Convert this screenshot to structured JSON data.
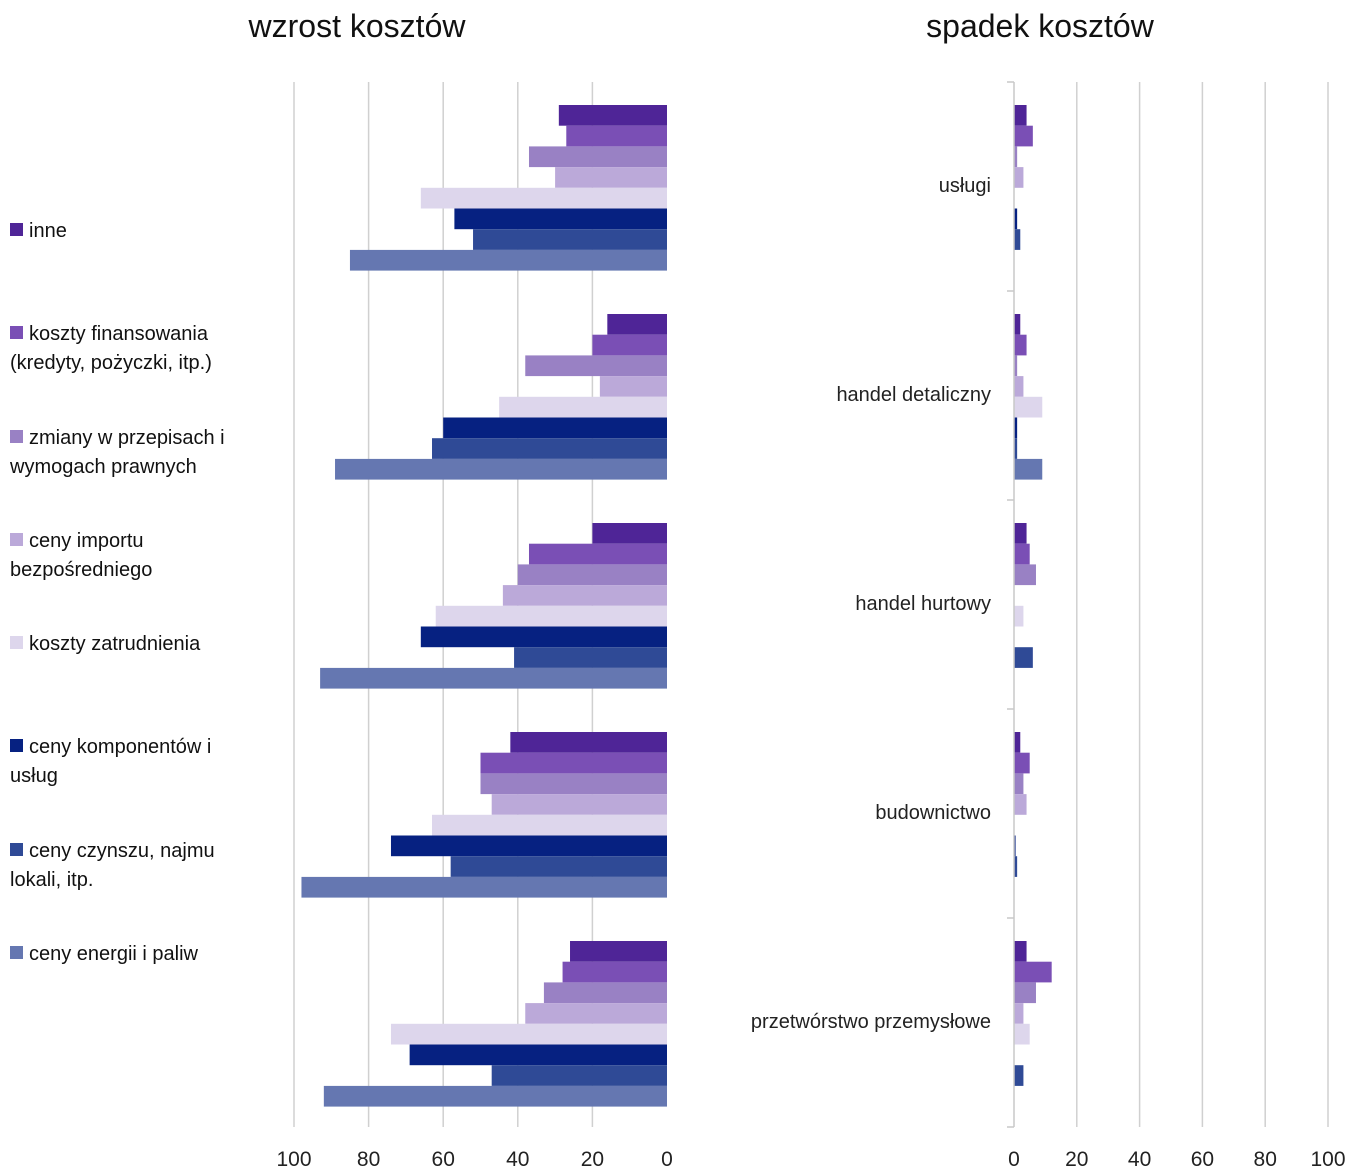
{
  "chart_data": [
    {
      "type": "bar",
      "orientation": "horizontal",
      "title": "wzrost kosztów",
      "x_axis_reversed": true,
      "xlim": [
        0,
        100
      ],
      "xticks": [
        100,
        80,
        60,
        40,
        20,
        0
      ],
      "grid": true,
      "legend_position": "left",
      "categories": [
        "usługi",
        "handel detaliczny",
        "handel hurtowy",
        "budownictwo",
        "przetwórstwo przemysłowe"
      ],
      "series": [
        {
          "name": "inne",
          "color": "#4F2597",
          "values": [
            29,
            16,
            20,
            42,
            26
          ]
        },
        {
          "name": "koszty finansowania (kredyty, pożyczki, itp.)",
          "color": "#7A4FB5",
          "values": [
            27,
            20,
            37,
            50,
            28
          ]
        },
        {
          "name": "zmiany w przepisach i wymogach prawnych",
          "color": "#9981C4",
          "values": [
            37,
            38,
            40,
            50,
            33
          ]
        },
        {
          "name": "ceny importu bezpośredniego",
          "color": "#BBA9D9",
          "values": [
            30,
            18,
            44,
            47,
            38
          ]
        },
        {
          "name": "koszty zatrudnienia",
          "color": "#DDD6EC",
          "values": [
            66,
            45,
            62,
            63,
            74
          ]
        },
        {
          "name": "ceny komponentów i usług",
          "color": "#062181",
          "values": [
            57,
            60,
            66,
            74,
            69
          ]
        },
        {
          "name": "ceny czynszu, najmu lokali, itp.",
          "color": "#2F4A96",
          "values": [
            52,
            63,
            41,
            58,
            47
          ]
        },
        {
          "name": "ceny energii i paliw",
          "color": "#6577B1",
          "values": [
            85,
            89,
            93,
            98,
            92
          ]
        }
      ]
    },
    {
      "type": "bar",
      "orientation": "horizontal",
      "title": "spadek kosztów",
      "xlim": [
        0,
        100
      ],
      "xticks": [
        0,
        20,
        40,
        60,
        80,
        100
      ],
      "grid": true,
      "categories": [
        "usługi",
        "handel detaliczny",
        "handel hurtowy",
        "budownictwo",
        "przetwórstwo przemysłowe"
      ],
      "series": [
        {
          "name": "inne",
          "color": "#4F2597",
          "values": [
            4,
            2,
            4,
            2,
            4
          ]
        },
        {
          "name": "koszty finansowania (kredyty, pożyczki, itp.)",
          "color": "#7A4FB5",
          "values": [
            6,
            4,
            5,
            5,
            12
          ]
        },
        {
          "name": "zmiany w przepisach i wymogach prawnych",
          "color": "#9981C4",
          "values": [
            1,
            1,
            7,
            3,
            7
          ]
        },
        {
          "name": "ceny importu bezpośredniego",
          "color": "#BBA9D9",
          "values": [
            3,
            3,
            0,
            4,
            3
          ]
        },
        {
          "name": "koszty zatrudnienia",
          "color": "#DDD6EC",
          "values": [
            0,
            9,
            3,
            0,
            5
          ]
        },
        {
          "name": "ceny komponentów i usług",
          "color": "#062181",
          "values": [
            1,
            1,
            0,
            0.5,
            0
          ]
        },
        {
          "name": "ceny czynszu, najmu lokali, itp.",
          "color": "#2F4A96",
          "values": [
            2,
            1,
            6,
            1,
            3
          ]
        },
        {
          "name": "ceny energii i paliw",
          "color": "#6577B1",
          "values": [
            0,
            9,
            0,
            0,
            0
          ]
        }
      ]
    }
  ],
  "legend": {
    "items": [
      {
        "label": "inne",
        "color": "#4F2597"
      },
      {
        "label": "koszty finansowania (kredyty, pożyczki, itp.)",
        "color": "#7A4FB5"
      },
      {
        "label": "zmiany w przepisach i wymogach prawnych",
        "color": "#9981C4"
      },
      {
        "label": "ceny importu bezpośredniego",
        "color": "#BBA9D9"
      },
      {
        "label": "koszty zatrudnienia",
        "color": "#DDD6EC"
      },
      {
        "label": "ceny komponentów i usług",
        "color": "#062181"
      },
      {
        "label": "ceny czynszu, najmu lokali, itp.",
        "color": "#2F4A96"
      },
      {
        "label": "ceny energii i paliw",
        "color": "#6577B1"
      }
    ]
  }
}
